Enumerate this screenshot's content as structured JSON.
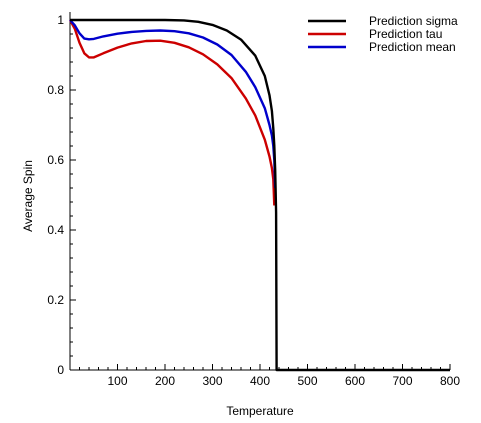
{
  "chart_data": {
    "type": "line",
    "xlabel": "Temperature",
    "ylabel": "Average Spin",
    "xlim": [
      0,
      800
    ],
    "ylim": [
      0,
      1
    ],
    "x_ticks": [
      100,
      200,
      300,
      400,
      500,
      600,
      700,
      800
    ],
    "y_ticks": [
      0,
      0.2,
      0.4,
      0.6,
      0.8,
      1
    ],
    "x_tick_labels": [
      "100",
      "200",
      "300",
      "400",
      "500",
      "600",
      "700",
      "800"
    ],
    "y_tick_labels": [
      "0",
      "0.2",
      "0.4",
      "0.6",
      "0.8",
      "1"
    ],
    "grid": false,
    "legend_position": "top-right",
    "series": [
      {
        "name": "Prediction sigma",
        "color": "#000000",
        "x": [
          0,
          100,
          200,
          240,
          270,
          300,
          330,
          360,
          390,
          410,
          420,
          425,
          428,
          430,
          432,
          434,
          435,
          436,
          800
        ],
        "y": [
          1,
          1,
          1,
          0.999,
          0.995,
          0.986,
          0.97,
          0.944,
          0.898,
          0.84,
          0.785,
          0.74,
          0.69,
          0.64,
          0.57,
          0.45,
          0,
          0,
          0
        ]
      },
      {
        "name": "Prediction tau",
        "color": "#cc0000",
        "x": [
          0,
          10,
          20,
          30,
          40,
          50,
          70,
          100,
          130,
          160,
          190,
          220,
          250,
          280,
          310,
          340,
          370,
          390,
          410,
          420,
          425,
          428,
          430
        ],
        "y": [
          1,
          0.975,
          0.935,
          0.905,
          0.893,
          0.893,
          0.905,
          0.921,
          0.933,
          0.94,
          0.941,
          0.935,
          0.922,
          0.902,
          0.873,
          0.834,
          0.776,
          0.727,
          0.658,
          0.61,
          0.577,
          0.545,
          0.47
        ]
      },
      {
        "name": "Prediction mean",
        "color": "#0000cc",
        "x": [
          0,
          10,
          20,
          30,
          40,
          50,
          70,
          100,
          130,
          160,
          190,
          220,
          250,
          280,
          310,
          340,
          370,
          390,
          410,
          420,
          425,
          428,
          430,
          432
        ],
        "y": [
          1,
          0.985,
          0.962,
          0.947,
          0.945,
          0.946,
          0.953,
          0.961,
          0.966,
          0.969,
          0.97,
          0.968,
          0.962,
          0.95,
          0.93,
          0.9,
          0.852,
          0.808,
          0.748,
          0.7,
          0.67,
          0.64,
          0.6,
          0.52
        ]
      }
    ]
  }
}
